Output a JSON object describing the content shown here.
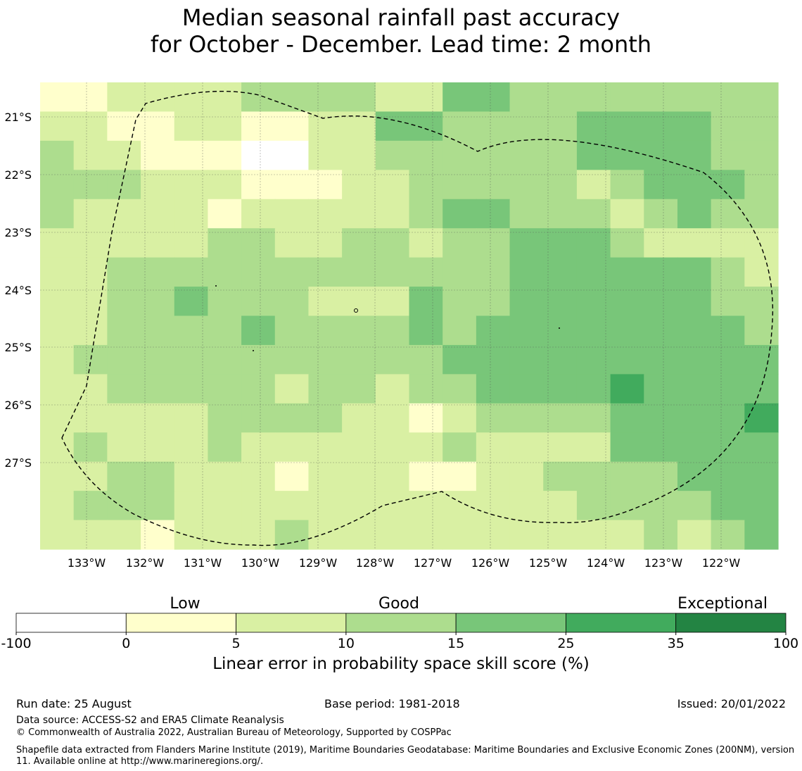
{
  "title": {
    "line1": "Median seasonal rainfall past accuracy",
    "line2": "for October - December. Lead time: 2 month"
  },
  "map": {
    "lat_labels": [
      "21°S",
      "22°S",
      "23°S",
      "24°S",
      "25°S",
      "26°S",
      "27°S"
    ],
    "lon_labels": [
      "133°W",
      "132°W",
      "131°W",
      "130°W",
      "129°W",
      "128°W",
      "127°W",
      "126°W",
      "125°W",
      "124°W",
      "123°W",
      "122°W"
    ],
    "grid_lines": "on, dotted",
    "boundary": "dashed EEZ outline",
    "cell_classes": [
      [
        1,
        1,
        2,
        2,
        2,
        2,
        3,
        3,
        3,
        3,
        2,
        2,
        4,
        4,
        3,
        3,
        3,
        3,
        3,
        3,
        3,
        3
      ],
      [
        2,
        2,
        1,
        1,
        2,
        2,
        1,
        1,
        2,
        2,
        4,
        4,
        3,
        3,
        3,
        3,
        4,
        4,
        4,
        4,
        3,
        3
      ],
      [
        3,
        2,
        2,
        1,
        1,
        1,
        0,
        0,
        2,
        2,
        3,
        3,
        3,
        3,
        3,
        3,
        4,
        4,
        4,
        4,
        3,
        3
      ],
      [
        3,
        3,
        3,
        2,
        2,
        2,
        1,
        1,
        1,
        2,
        2,
        3,
        3,
        3,
        3,
        3,
        2,
        3,
        4,
        4,
        4,
        3
      ],
      [
        3,
        2,
        2,
        2,
        2,
        1,
        2,
        2,
        2,
        2,
        2,
        3,
        4,
        4,
        3,
        3,
        3,
        2,
        3,
        4,
        3,
        3
      ],
      [
        2,
        2,
        2,
        2,
        2,
        3,
        3,
        2,
        2,
        3,
        3,
        2,
        3,
        3,
        4,
        4,
        4,
        3,
        2,
        2,
        2,
        2
      ],
      [
        2,
        2,
        3,
        3,
        3,
        3,
        3,
        3,
        3,
        3,
        3,
        3,
        3,
        3,
        4,
        4,
        4,
        4,
        4,
        4,
        3,
        2
      ],
      [
        2,
        2,
        3,
        3,
        4,
        3,
        3,
        3,
        2,
        2,
        2,
        4,
        3,
        3,
        4,
        4,
        4,
        4,
        4,
        4,
        3,
        3
      ],
      [
        2,
        2,
        3,
        3,
        3,
        3,
        4,
        3,
        3,
        3,
        3,
        4,
        3,
        4,
        4,
        4,
        4,
        4,
        4,
        4,
        4,
        3
      ],
      [
        2,
        3,
        3,
        3,
        3,
        3,
        3,
        3,
        3,
        3,
        3,
        3,
        4,
        4,
        4,
        4,
        4,
        4,
        4,
        4,
        4,
        4
      ],
      [
        2,
        2,
        3,
        3,
        3,
        3,
        3,
        2,
        3,
        3,
        2,
        3,
        3,
        4,
        4,
        4,
        4,
        5,
        4,
        4,
        4,
        4
      ],
      [
        2,
        2,
        2,
        2,
        2,
        3,
        3,
        3,
        3,
        2,
        2,
        1,
        2,
        3,
        3,
        3,
        3,
        4,
        4,
        4,
        4,
        5
      ],
      [
        2,
        3,
        2,
        2,
        2,
        3,
        2,
        2,
        2,
        2,
        2,
        2,
        3,
        2,
        2,
        2,
        2,
        4,
        4,
        4,
        4,
        4
      ],
      [
        2,
        2,
        3,
        3,
        2,
        2,
        2,
        1,
        2,
        2,
        2,
        1,
        1,
        2,
        2,
        3,
        3,
        3,
        3,
        4,
        4,
        4
      ],
      [
        2,
        3,
        3,
        3,
        2,
        2,
        2,
        2,
        2,
        2,
        2,
        2,
        2,
        2,
        2,
        2,
        3,
        3,
        3,
        3,
        4,
        4
      ],
      [
        2,
        2,
        2,
        1,
        2,
        2,
        2,
        3,
        2,
        2,
        2,
        2,
        2,
        2,
        2,
        2,
        2,
        2,
        3,
        2,
        3,
        4
      ]
    ]
  },
  "colorbar": {
    "category_labels": [
      "Low",
      "Good",
      "Exceptional"
    ],
    "ticks": [
      "-100",
      "0",
      "5",
      "10",
      "15",
      "25",
      "35",
      "100"
    ],
    "colors": [
      "#ffffff",
      "#ffffcc",
      "#d9f0a3",
      "#addd8e",
      "#78c679",
      "#41ab5d",
      "#238443"
    ],
    "title": "Linear error in probability space skill score (%)"
  },
  "footer": {
    "run_date": "Run date: 25 August",
    "base_period": "Base period: 1981-2018",
    "issued": "Issued: 20/01/2022",
    "data_source": "Data source: ACCESS-S2 and ERA5 Climate Reanalysis",
    "copyright": "© Commonwealth of Australia 2022, Australian Bureau of Meteorology, Supported by COSPPac",
    "shapefile": "Shapefile data extracted from Flanders Marine Institute (2019), Maritime Boundaries Geodatabase: Maritime Boundaries and Exclusive Economic Zones (200NM), version 11. Available online at http://www.marineregions.org/."
  }
}
